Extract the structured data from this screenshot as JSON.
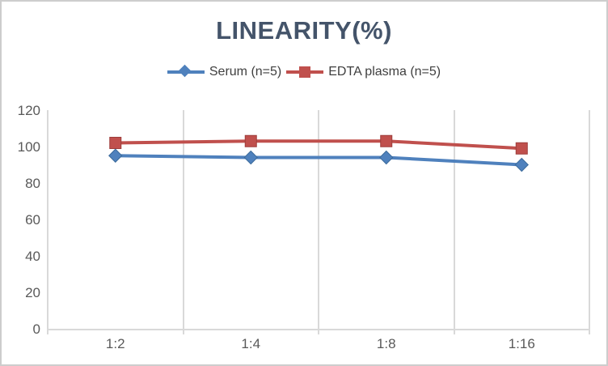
{
  "title": "LINEARITY(%)",
  "colors": {
    "title_text": "#44546A",
    "axis_text": "#595959",
    "legend_text": "#3F3F3F",
    "gridline": "#D9D9D9",
    "serum_blue": "#4F81BD",
    "edta_red": "#C0504D"
  },
  "chart_data": {
    "type": "line",
    "title": "LINEARITY(%)",
    "categories": [
      "1:2",
      "1:4",
      "1:8",
      "1:16"
    ],
    "series": [
      {
        "name": "Serum (n=5)",
        "marker": "diamond",
        "color": "#4F81BD",
        "edge": "#3A6A9B",
        "values": [
          95,
          94,
          94,
          90
        ]
      },
      {
        "name": "EDTA plasma (n=5)",
        "marker": "square",
        "color": "#C0504D",
        "edge": "#9E3D3B",
        "values": [
          102,
          103,
          103,
          99
        ]
      }
    ],
    "xlabel": "",
    "ylabel": "",
    "ylim": [
      0,
      120
    ],
    "yticks": [
      0,
      20,
      40,
      60,
      80,
      100,
      120
    ],
    "grid": "vertical-only",
    "legend_position": "top"
  }
}
